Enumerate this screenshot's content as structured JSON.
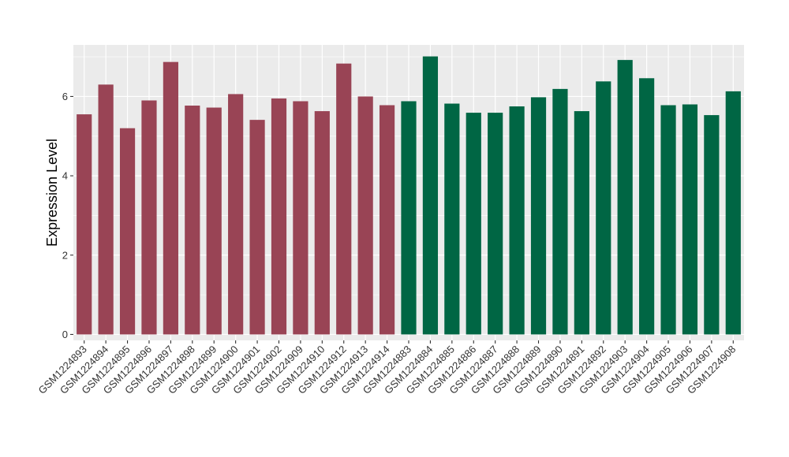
{
  "chart_data": {
    "type": "bar",
    "title": "",
    "xlabel": "",
    "ylabel": "Expression Level",
    "ylim": [
      -0.15,
      7.3
    ],
    "yticks": [
      0,
      2,
      4,
      6
    ],
    "grid": true,
    "legend": "none",
    "categories": [
      "GSM1224893",
      "GSM1224894",
      "GSM1224895",
      "GSM1224896",
      "GSM1224897",
      "GSM1224898",
      "GSM1224899",
      "GSM1224900",
      "GSM1224901",
      "GSM1224902",
      "GSM1224909",
      "GSM1224910",
      "GSM1224912",
      "GSM1224913",
      "GSM1224914",
      "GSM1224883",
      "GSM1224884",
      "GSM1224885",
      "GSM1224886",
      "GSM1224887",
      "GSM1224888",
      "GSM1224889",
      "GSM1224890",
      "GSM1224891",
      "GSM1224892",
      "GSM1224903",
      "GSM1224904",
      "GSM1224905",
      "GSM1224906",
      "GSM1224907",
      "GSM1224908"
    ],
    "values": [
      5.55,
      6.3,
      5.2,
      5.9,
      6.87,
      5.77,
      5.72,
      6.06,
      5.41,
      5.95,
      5.88,
      5.63,
      6.83,
      6.0,
      5.78,
      5.88,
      7.01,
      5.82,
      5.59,
      5.59,
      5.75,
      5.98,
      6.19,
      5.63,
      6.38,
      6.92,
      6.46,
      5.78,
      5.8,
      5.53,
      6.13
    ],
    "group_colors": [
      "#994455",
      "#994455",
      "#994455",
      "#994455",
      "#994455",
      "#994455",
      "#994455",
      "#994455",
      "#994455",
      "#994455",
      "#994455",
      "#994455",
      "#994455",
      "#994455",
      "#994455",
      "#006644",
      "#006644",
      "#006644",
      "#006644",
      "#006644",
      "#006644",
      "#006644",
      "#006644",
      "#006644",
      "#006644",
      "#006644",
      "#006644",
      "#006644",
      "#006644",
      "#006644",
      "#006644"
    ],
    "panel_background": "#ebebeb",
    "gridline_color": "#ffffff"
  }
}
